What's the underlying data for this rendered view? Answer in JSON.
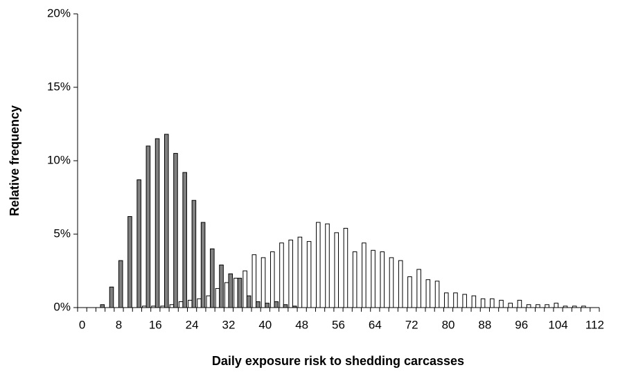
{
  "chart_data": {
    "type": "bar",
    "xlabel": "Daily exposure risk to shedding carcasses",
    "ylabel": "Relative frequency",
    "categories": [
      "0",
      null,
      null,
      null,
      "8",
      null,
      null,
      null,
      "16",
      null,
      null,
      null,
      "24",
      null,
      null,
      null,
      "32",
      null,
      null,
      null,
      "40",
      null,
      null,
      null,
      "48",
      null,
      null,
      null,
      "56",
      null,
      null,
      null,
      "64",
      null,
      null,
      null,
      "72",
      null,
      null,
      null,
      "80",
      null,
      null,
      null,
      "88",
      null,
      null,
      null,
      "96",
      null,
      null,
      null,
      "104",
      null,
      null,
      null,
      "112"
    ],
    "series": [
      {
        "color": "#ffffff",
        "values": [
          0,
          0,
          0,
          0,
          0,
          0,
          0,
          0.1,
          0.1,
          0.1,
          0.2,
          0.4,
          0.5,
          0.6,
          0.8,
          1.3,
          1.7,
          2.0,
          2.5,
          3.6,
          3.4,
          3.8,
          4.4,
          4.6,
          4.8,
          4.5,
          5.8,
          5.7,
          5.1,
          5.4,
          3.8,
          4.4,
          3.9,
          3.8,
          3.4,
          3.2,
          2.1,
          2.6,
          1.9,
          1.8,
          1.0,
          1.0,
          0.9,
          0.8,
          0.6,
          0.6,
          0.5,
          0.3,
          0.5,
          0.2,
          0.2,
          0.2,
          0.3,
          0.1,
          0.1,
          0.1,
          0
        ]
      },
      {
        "color": "#808080",
        "values": [
          0,
          0,
          0.2,
          1.4,
          3.2,
          6.2,
          8.7,
          11.0,
          11.5,
          11.8,
          10.5,
          9.2,
          7.3,
          5.8,
          4.0,
          2.9,
          2.3,
          2.0,
          0.8,
          0.4,
          0.3,
          0.4,
          0.2,
          0.1,
          0,
          0,
          0,
          0,
          0,
          0,
          0,
          0,
          0,
          0,
          0,
          0,
          0,
          0,
          0,
          0,
          0,
          0,
          0,
          0,
          0,
          0,
          0,
          0,
          0,
          0,
          0,
          0,
          0,
          0,
          0,
          0,
          0
        ]
      }
    ],
    "ylim": [
      0,
      20
    ],
    "yticks": [
      {
        "value": 0,
        "label": "0%"
      },
      {
        "value": 5,
        "label": "5%"
      },
      {
        "value": 10,
        "label": "10%"
      },
      {
        "value": 15,
        "label": "15%"
      },
      {
        "value": 20,
        "label": "20%"
      }
    ]
  }
}
